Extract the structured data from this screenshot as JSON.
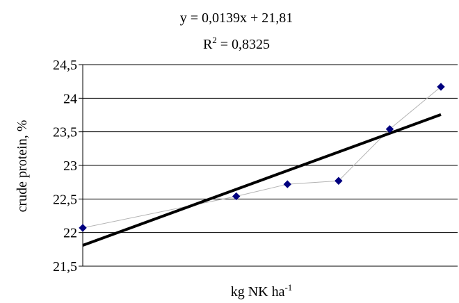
{
  "chart_data": {
    "type": "scatter",
    "title_line1": "y = 0,0139x + 21,81",
    "title_line2_base": "R",
    "title_line2_sup": "2",
    "title_line2_rest": " = 0,8325",
    "ylabel": "crude protein, %",
    "xlabel_base": "kg NK ha",
    "xlabel_sup": "-1",
    "ylim": [
      21.5,
      24.5
    ],
    "yticks": [
      21.5,
      22,
      22.5,
      23,
      23.5,
      24,
      24.5
    ],
    "ytick_labels": [
      "21,5",
      "22",
      "22,5",
      "23",
      "23,5",
      "24",
      "24,5"
    ],
    "xlim": [
      0,
      140
    ],
    "grid": "horizontal",
    "series": [
      {
        "x": [
          0,
          60,
          80,
          100,
          120,
          140
        ],
        "y": [
          22.07,
          22.54,
          22.72,
          22.77,
          23.54,
          24.17
        ],
        "color": "#00007f",
        "line_color": "#b3b3b3"
      }
    ],
    "trendline": {
      "slope": 0.0139,
      "intercept": 21.81,
      "color": "#000000"
    }
  }
}
